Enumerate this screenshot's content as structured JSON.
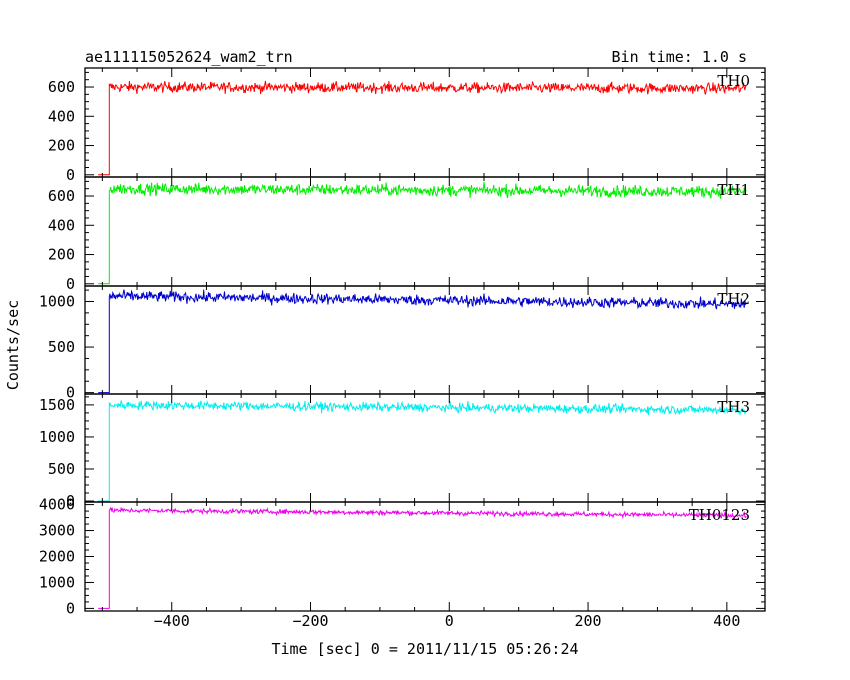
{
  "chart_data": {
    "type": "line",
    "title": "ae111115052624_wam2_trn",
    "bin_time": "Bin time: 1.0 s",
    "xlabel": "Time [sec] 0 = 2011/11/15 05:26:24",
    "ylabel": "Counts/sec",
    "xlim": [
      -525,
      455
    ],
    "xticks": [
      -400,
      -200,
      0,
      200,
      400
    ],
    "xtick_labels": [
      "−400",
      "−200",
      "0",
      "200",
      "400"
    ],
    "trigger_time": -490,
    "x_start": -506,
    "x_end": 428,
    "panels": [
      {
        "name": "TH0",
        "color": "#ff0000",
        "ylim": [
          -15,
          730
        ],
        "yticks": [
          0,
          200,
          400,
          600
        ],
        "ytick_labels": [
          "0",
          "200",
          "400",
          "600"
        ],
        "level_start": 600,
        "level_end": 590,
        "noise": 18,
        "pre_level": 0
      },
      {
        "name": "TH1",
        "color": "#00ee00",
        "ylim": [
          -15,
          730
        ],
        "yticks": [
          0,
          200,
          400,
          600
        ],
        "ytick_labels": [
          "0",
          "200",
          "400",
          "600"
        ],
        "level_start": 650,
        "level_end": 630,
        "noise": 20,
        "pre_level": 0
      },
      {
        "name": "TH2",
        "color": "#0000cc",
        "ylim": [
          -15,
          1170
        ],
        "yticks": [
          0,
          500,
          1000
        ],
        "ytick_labels": [
          "0",
          "500",
          "1000"
        ],
        "level_start": 1060,
        "level_end": 970,
        "noise": 30,
        "pre_level": 0
      },
      {
        "name": "TH3",
        "color": "#00eeee",
        "ylim": [
          -15,
          1670
        ],
        "yticks": [
          0,
          500,
          1000,
          1500
        ],
        "ytick_labels": [
          "0",
          "500",
          "1000",
          "1500"
        ],
        "level_start": 1500,
        "level_end": 1420,
        "noise": 35,
        "pre_level": 0
      },
      {
        "name": "TH0123",
        "color": "#ee00ee",
        "ylim": [
          -100,
          4100
        ],
        "yticks": [
          0,
          1000,
          2000,
          3000,
          4000
        ],
        "ytick_labels": [
          "0",
          "1000",
          "2000",
          "3000",
          "4000"
        ],
        "level_start": 3780,
        "level_end": 3580,
        "noise": 45,
        "pre_level": 0
      }
    ]
  }
}
